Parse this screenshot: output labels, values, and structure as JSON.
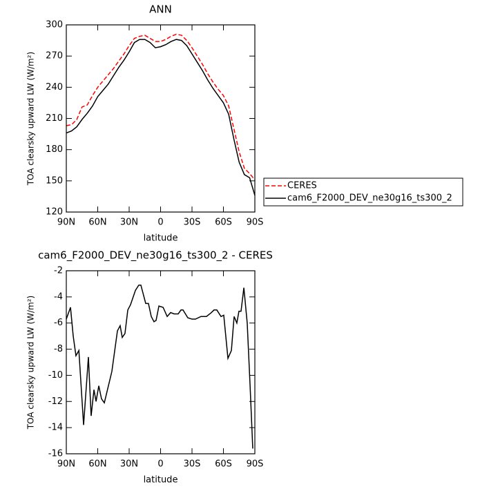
{
  "chart_data": [
    {
      "type": "line",
      "title": "ANN",
      "x_label": "latitude",
      "y_label": "TOA clearsky upward LW (W/m²)",
      "x": [
        90,
        85,
        80,
        75,
        70,
        65,
        60,
        55,
        50,
        45,
        40,
        35,
        30,
        25,
        20,
        15,
        10,
        5,
        0,
        -5,
        -10,
        -15,
        -20,
        -25,
        -30,
        -35,
        -40,
        -45,
        -50,
        -55,
        -60,
        -65,
        -70,
        -75,
        -80,
        -85,
        -90
      ],
      "series": [
        {
          "name": "CERES",
          "color": "#ff0000",
          "line_style": "dashed",
          "values": [
            203,
            204,
            209,
            221,
            223,
            232,
            240,
            246,
            252,
            258,
            265,
            272,
            280,
            287,
            289,
            290,
            287,
            284,
            284,
            286,
            289,
            291,
            290,
            285,
            278,
            270,
            262,
            253,
            245,
            238,
            232,
            222,
            200,
            178,
            162,
            157,
            151
          ]
        },
        {
          "name": "cam6_F2000_DEV_ne30g16_ts300_2",
          "color": "#000000",
          "line_style": "solid",
          "values": [
            196,
            198,
            202,
            209,
            215,
            222,
            231,
            237,
            243,
            251,
            259,
            266,
            274,
            283,
            286,
            286,
            283,
            278,
            279,
            281,
            284,
            286,
            285,
            280,
            272,
            264,
            256,
            247,
            239,
            232,
            225,
            214,
            190,
            168,
            156,
            153,
            136
          ]
        }
      ],
      "xlim": [
        90,
        -90
      ],
      "xticks": [
        {
          "value": 90,
          "label": "90N"
        },
        {
          "value": 60,
          "label": "60N"
        },
        {
          "value": 30,
          "label": "30N"
        },
        0,
        {
          "value": -30,
          "label": "30S"
        },
        {
          "value": -60,
          "label": "60S"
        },
        {
          "value": -90,
          "label": "90S"
        }
      ],
      "ylim": [
        120,
        300
      ],
      "yticks": [
        120,
        150,
        180,
        210,
        240,
        270,
        300
      ],
      "legend": "right"
    },
    {
      "type": "line",
      "title": "cam6_F2000_DEV_ne30g16_ts300_2 - CERES",
      "x_label": "latitude",
      "y_label": "TOA clearsky upward LW (W/m²)",
      "x": [
        90,
        86,
        83.4,
        80.8,
        78,
        73.5,
        68.9,
        66.3,
        63.6,
        61.6,
        59,
        56.4,
        53.7,
        46.5,
        41.2,
        38.6,
        36.6,
        34,
        31.3,
        28.7,
        24,
        20.8,
        18.8,
        14.2,
        11.6,
        8.9,
        6.3,
        4.3,
        1.6,
        -2.4,
        -6.3,
        -9.6,
        -12.9,
        -16.8,
        -19.5,
        -21.4,
        -26,
        -30,
        -33.3,
        -38.6,
        -43.8,
        -48.5,
        -51,
        -53.7,
        -57.7,
        -60.3,
        -64.3,
        -67.6,
        -70.2,
        -72.8,
        -74.8,
        -76.8,
        -79.5,
        -82.7,
        -85.4,
        -88
      ],
      "series": [
        {
          "name": "cam6_F2000_DEV_ne30g16_ts300_2 - CERES",
          "color": "#000000",
          "line_style": "solid",
          "values": [
            -5.7,
            -4.8,
            -7,
            -8.5,
            -8.1,
            -13.8,
            -8.6,
            -13.1,
            -11.1,
            -12,
            -10.8,
            -11.8,
            -12.1,
            -9.7,
            -6.6,
            -6.2,
            -7.1,
            -6.8,
            -5,
            -4.6,
            -3.5,
            -3.1,
            -3.1,
            -4.5,
            -4.5,
            -5.5,
            -5.9,
            -5.8,
            -4.7,
            -4.8,
            -5.5,
            -5.2,
            -5.3,
            -5.3,
            -5,
            -5,
            -5.6,
            -5.7,
            -5.7,
            -5.5,
            -5.5,
            -5.2,
            -5,
            -5,
            -5.5,
            -5.4,
            -8.7,
            -8.1,
            -5.5,
            -6,
            -5.1,
            -5.1,
            -3.3,
            -6,
            -10.7,
            -15.6
          ]
        }
      ],
      "xlim": [
        90,
        -90
      ],
      "xticks": [
        {
          "value": 90,
          "label": "90N"
        },
        {
          "value": 60,
          "label": "60N"
        },
        {
          "value": 30,
          "label": "30N"
        },
        0,
        {
          "value": -30,
          "label": "30S"
        },
        {
          "value": -60,
          "label": "60S"
        },
        {
          "value": -90,
          "label": "90S"
        }
      ],
      "ylim": [
        -16,
        -2
      ],
      "yticks": [
        -16,
        -14,
        -12,
        -10,
        -8,
        -6,
        -4,
        -2
      ]
    }
  ]
}
